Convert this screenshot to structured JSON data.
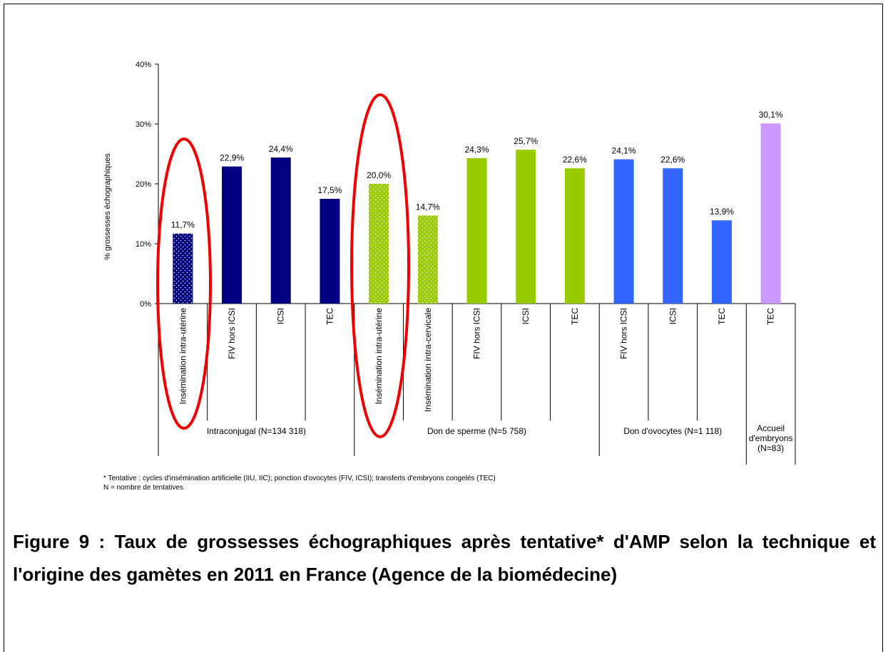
{
  "chart_data": {
    "type": "grouped-bar",
    "y_label": "% grossesses échographiques",
    "ylim": [
      0,
      40
    ],
    "yticks": [
      {
        "value": 0,
        "label": "0%"
      },
      {
        "value": 10,
        "label": "10%"
      },
      {
        "value": 20,
        "label": "20%"
      },
      {
        "value": 30,
        "label": "30%"
      },
      {
        "value": 40,
        "label": "40%"
      }
    ],
    "groups": [
      {
        "name": "Intraconjugal (N=134 318)",
        "color": "#000080",
        "categories": [
          "Insémination intra-utérine",
          "FIV hors ICSI",
          "ICSI",
          "TEC"
        ],
        "values": [
          11.7,
          22.9,
          24.4,
          17.5
        ],
        "value_labels": [
          "11,7%",
          "22,9%",
          "24,4%",
          "17,5%"
        ],
        "dotted": [
          true,
          false,
          false,
          false
        ]
      },
      {
        "name": "Don de sperme (N=5 758)",
        "color": "#99cc00",
        "categories": [
          "Insémination intra-utérine",
          "Insémination intra-cervicale",
          "FIV hors ICSI",
          "ICSI",
          "TEC"
        ],
        "values": [
          20.0,
          14.7,
          24.3,
          25.7,
          22.6
        ],
        "value_labels": [
          "20,0%",
          "14,7%",
          "24,3%",
          "25,7%",
          "22,6%"
        ],
        "dotted": [
          true,
          true,
          false,
          false,
          false
        ]
      },
      {
        "name": "Don d'ovocytes (N=1 118)",
        "color": "#3366ff",
        "categories": [
          "FIV hors ICSI",
          "ICSI",
          "TEC"
        ],
        "values": [
          24.1,
          22.6,
          13.9
        ],
        "value_labels": [
          "24,1%",
          "22,6%",
          "13,9%"
        ],
        "dotted": [
          false,
          false,
          false
        ]
      },
      {
        "name": "Accueil d'embryons (N=83)",
        "color": "#cc99ff",
        "categories": [
          "TEC"
        ],
        "values": [
          30.1
        ],
        "value_labels": [
          "30,1%"
        ],
        "dotted": [
          false
        ]
      }
    ],
    "footnotes": [
      "* Tentative : cycles d'insémination artificielle (IIU, IIC); ponction d'ovocytes (FIV, ICSI); transferts d'embryons congelés (TEC)",
      "N = nombre de tentatives"
    ],
    "caption": "Figure 9 : Taux de grossesses échographiques après tentative* d'AMP selon la technique et l'origine des gamètes en 2011 en France (Agence de la biomédecine)"
  }
}
